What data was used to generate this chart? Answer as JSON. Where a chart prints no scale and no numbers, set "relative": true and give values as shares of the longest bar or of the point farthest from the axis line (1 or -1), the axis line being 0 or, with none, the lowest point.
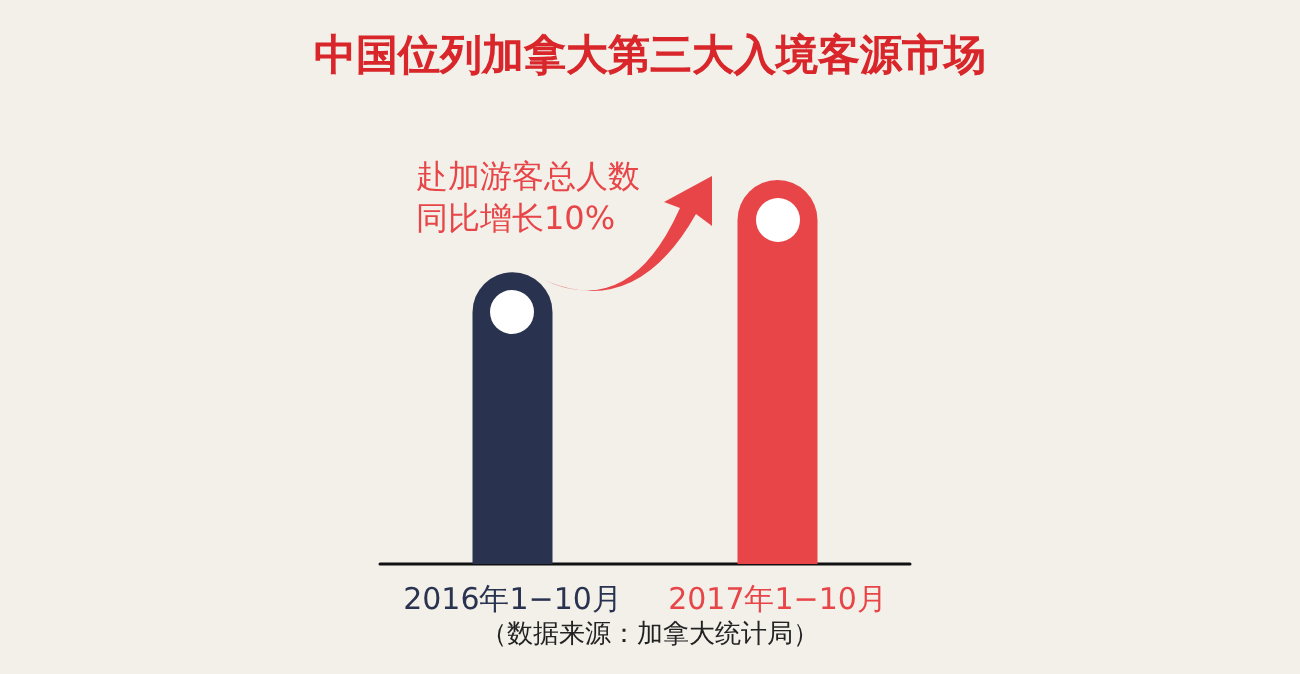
{
  "chart_data": {
    "type": "bar",
    "title": "中国位列加拿大第三大入境客源市场",
    "categories": [
      "2016年1−10月",
      "2017年1−10月"
    ],
    "values": [
      0.76,
      1
    ],
    "colors": [
      "#29334f",
      "#e84548"
    ],
    "relative": true,
    "annotations": [
      "赴加游客总人数",
      "同比增长10%",
      "（数据来源：加拿大统计局）"
    ]
  }
}
